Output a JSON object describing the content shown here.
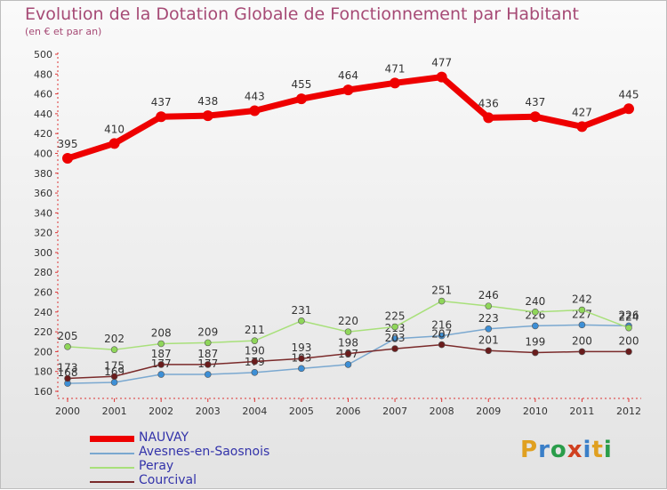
{
  "title": "Evolution de la Dotation Globale de Fonctionnement par Habitant",
  "subtitle": "(en € et par an)",
  "logo": {
    "text": "Proxiti",
    "letters": [
      "P",
      "r",
      "o",
      "x",
      "i",
      "t",
      "i"
    ],
    "colors": [
      "#e0a020",
      "#3a7fc8",
      "#2a9d4a",
      "#d04020",
      "#3a7fc8",
      "#e0a020",
      "#2a9d4a"
    ]
  },
  "chart_data": {
    "type": "line",
    "title": "Evolution de la Dotation Globale de Fonctionnement par Habitant",
    "subtitle": "(en € et par an)",
    "x": [
      "2000",
      "2001",
      "2002",
      "2003",
      "2004",
      "2005",
      "2006",
      "2007",
      "2008",
      "2009",
      "2010",
      "2011",
      "2012"
    ],
    "ylim": [
      160,
      500
    ],
    "yticks": [
      160,
      180,
      200,
      220,
      240,
      260,
      280,
      300,
      320,
      340,
      360,
      380,
      400,
      420,
      440,
      460,
      480,
      500
    ],
    "grid": false,
    "legend_position": "bottom-left",
    "series": [
      {
        "name": "NAUVAY",
        "color": "#ee0000",
        "marker": "#ee0000",
        "values": [
          395,
          410,
          437,
          438,
          443,
          455,
          464,
          471,
          477,
          436,
          437,
          427,
          445
        ]
      },
      {
        "name": "Avesnes-en-Saosnois",
        "color": "#7aa8d0",
        "marker": "#3d8fd6",
        "values": [
          168,
          169,
          177,
          177,
          179,
          183,
          187,
          213,
          216,
          223,
          226,
          227,
          226
        ]
      },
      {
        "name": "Peray",
        "color": "#a8e07a",
        "marker": "#8fd65a",
        "values": [
          205,
          202,
          208,
          209,
          211,
          231,
          220,
          225,
          251,
          246,
          240,
          242,
          224
        ]
      },
      {
        "name": "Courcival",
        "color": "#7a2a2a",
        "marker": "#6a1c1c",
        "values": [
          173,
          175,
          187,
          187,
          190,
          193,
          198,
          203,
          207,
          201,
          199,
          200,
          200
        ]
      }
    ]
  }
}
